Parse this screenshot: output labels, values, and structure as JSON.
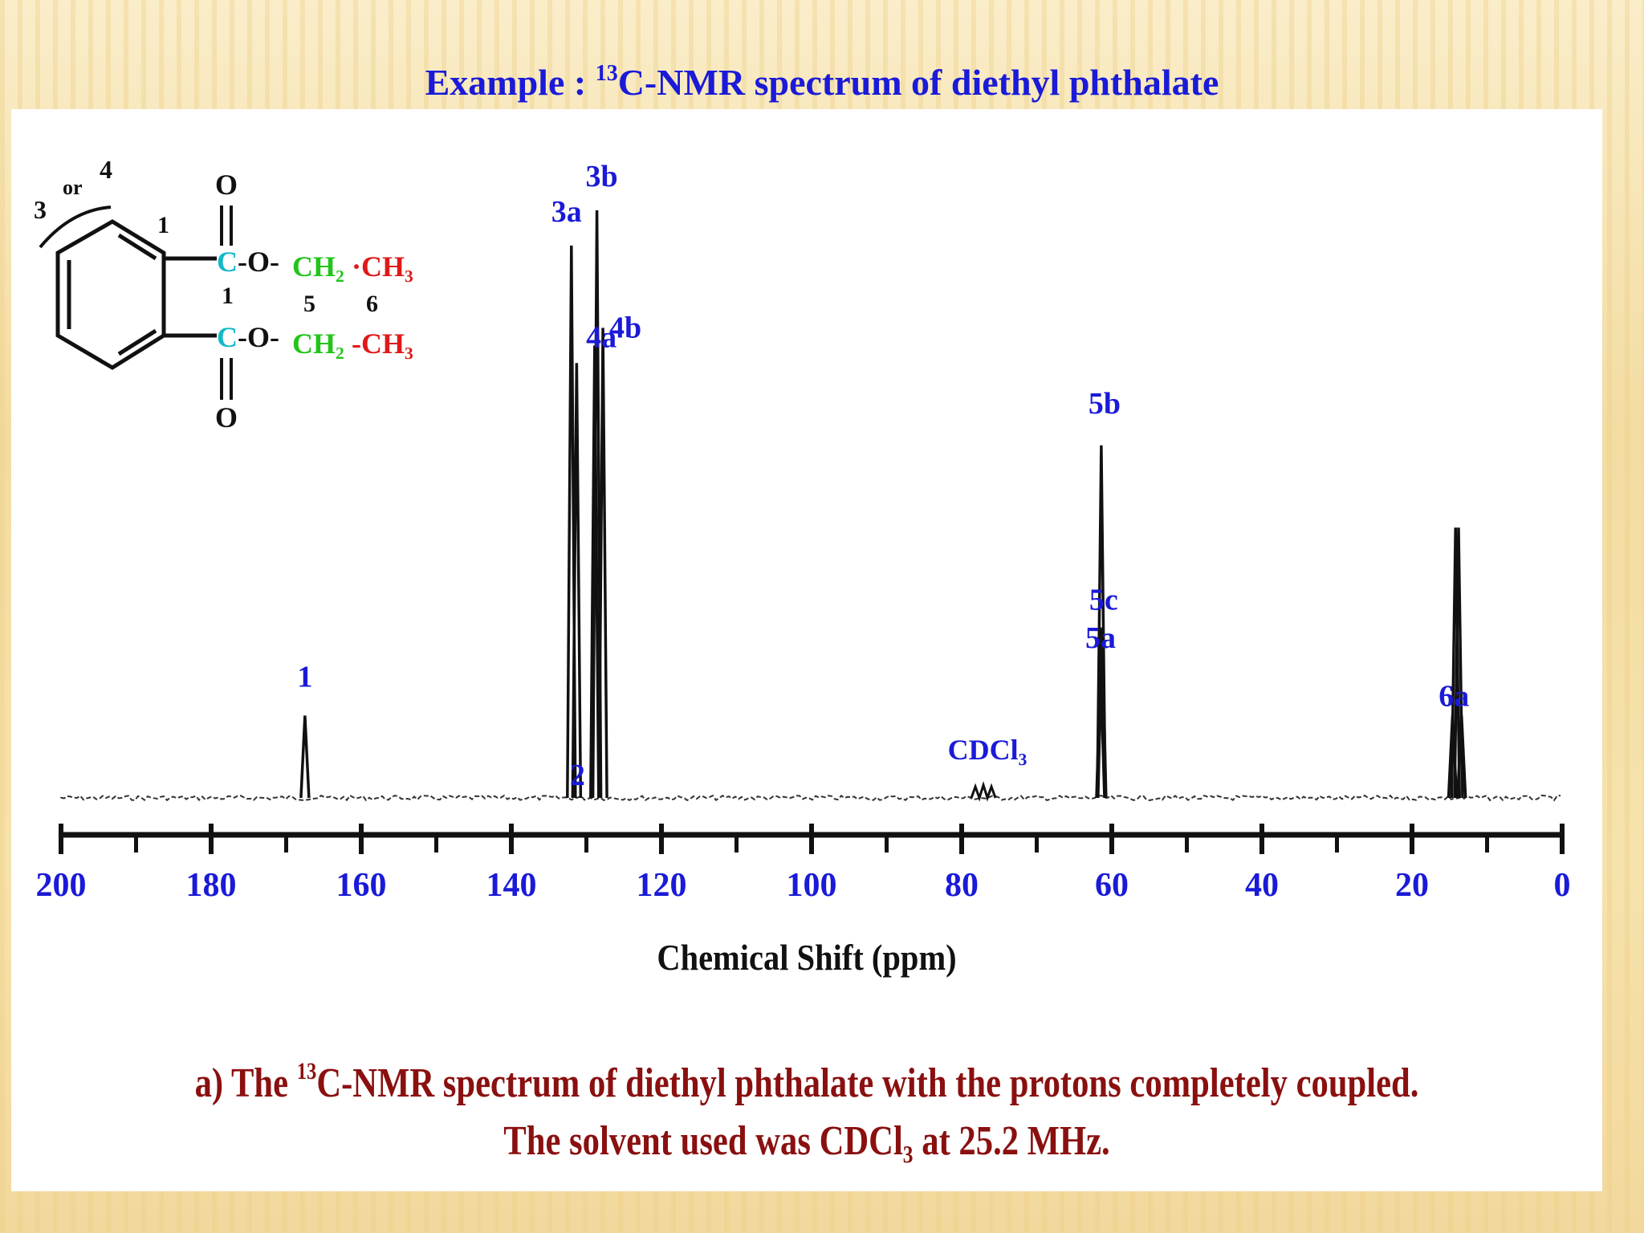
{
  "slide": {
    "title_prefix": "Example : ",
    "title_sup": "13",
    "title_rest": "C-NMR spectrum of diethyl phthalate"
  },
  "caption": {
    "line1_prefix": "a) The ",
    "line1_sup": "13",
    "line1_rest": "C-NMR spectrum of diethyl phthalate with the protons completely coupled.",
    "line2": "The solvent used was CDCl₃ at 25.2 MHz."
  },
  "structure": {
    "labels": [
      "3",
      "or",
      "4",
      "1",
      "O",
      "C",
      "-O-",
      "CH₂",
      "·CH₃",
      "1",
      "5",
      "6",
      "C",
      "-O-",
      "CH₂",
      "-CH₃",
      "O"
    ]
  },
  "colors": {
    "title": "#1a1ad8",
    "peak_label": "#1a1ad8",
    "caption": "#8a1010",
    "carbonyl_c": "#13b8c8",
    "ch2": "#22c41a",
    "ch3": "#e01818",
    "spectrum": "#111111"
  },
  "chart_data": {
    "type": "line",
    "title": "",
    "xlabel": "Chemical Shift (ppm)",
    "ylabel": "",
    "xlim": [
      200,
      0
    ],
    "x_reversed": true,
    "ylim": [
      0,
      1
    ],
    "grid": false,
    "tick_labels": [
      "200",
      "180",
      "160",
      "140",
      "120",
      "100",
      "80",
      "60",
      "40",
      "20",
      "0"
    ],
    "major_ticks": [
      200,
      180,
      160,
      140,
      120,
      100,
      80,
      60,
      40,
      20,
      0
    ],
    "minor_ticks": [
      190,
      170,
      150,
      130,
      110,
      90,
      70,
      50,
      30,
      10
    ],
    "solvent_label": "CDCl₃",
    "solvent_ppm": 77,
    "peaks": [
      {
        "ppm": 167.5,
        "height": 0.14
      },
      {
        "ppm": 132.0,
        "height": 0.94
      },
      {
        "ppm": 131.3,
        "height": 0.74
      },
      {
        "ppm": 128.9,
        "height": 0.77
      },
      {
        "ppm": 128.6,
        "height": 1.0
      },
      {
        "ppm": 127.8,
        "height": 0.8
      },
      {
        "ppm": 61.5,
        "height": 0.22
      },
      {
        "ppm": 61.4,
        "height": 0.6
      },
      {
        "ppm": 61.3,
        "height": 0.29
      },
      {
        "ppm": 14.6,
        "height": 0.14
      },
      {
        "ppm": 14.2,
        "height": 0.46
      },
      {
        "ppm": 13.8,
        "height": 0.46
      },
      {
        "ppm": 13.4,
        "height": 0.14
      }
    ],
    "peak_labels": [
      {
        "text": "1",
        "ppm": 167.5
      },
      {
        "text": "3a",
        "ppm": 132.0
      },
      {
        "text": "2",
        "ppm": 131.4
      },
      {
        "text": "4a",
        "ppm": 131.0
      },
      {
        "text": "3b",
        "ppm": 128.6
      },
      {
        "text": "4b",
        "ppm": 127.8
      },
      {
        "text": "5a",
        "ppm": 61.5
      },
      {
        "text": "5b",
        "ppm": 61.4
      },
      {
        "text": "5c",
        "ppm": 61.3
      },
      {
        "text": "6a",
        "ppm": 14.2
      }
    ]
  }
}
